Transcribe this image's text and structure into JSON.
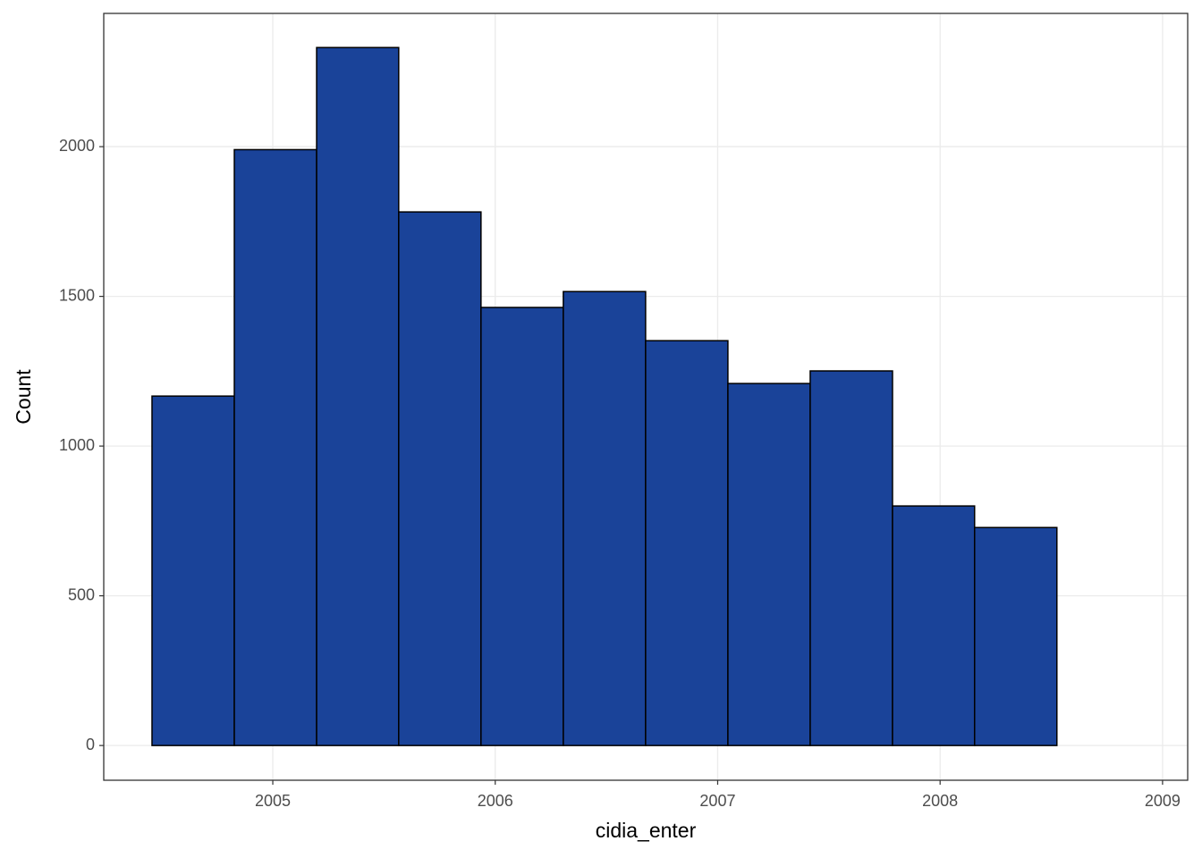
{
  "chart_data": {
    "type": "histogram",
    "x_label": "cidia_enter",
    "y_label": "Count",
    "bins": [
      2004.457,
      2004.827,
      2005.197,
      2005.566,
      2005.936,
      2006.306,
      2006.676,
      2007.046,
      2007.416,
      2007.786,
      2008.155,
      2008.525,
      2008.895
    ],
    "values": [
      1167,
      1990,
      2331,
      1782,
      1463,
      1516,
      1352,
      1209,
      1251,
      800,
      728,
      0
    ],
    "color": "#1a4399",
    "edge_color": "#000000",
    "xlim": [
      2004.24,
      2009.113
    ],
    "ylim": [
      -116,
      2445
    ],
    "xticks": [
      2005,
      2006,
      2007,
      2008,
      2009
    ],
    "yticks": [
      0,
      500,
      1000,
      1500,
      2000
    ],
    "grid": true
  }
}
